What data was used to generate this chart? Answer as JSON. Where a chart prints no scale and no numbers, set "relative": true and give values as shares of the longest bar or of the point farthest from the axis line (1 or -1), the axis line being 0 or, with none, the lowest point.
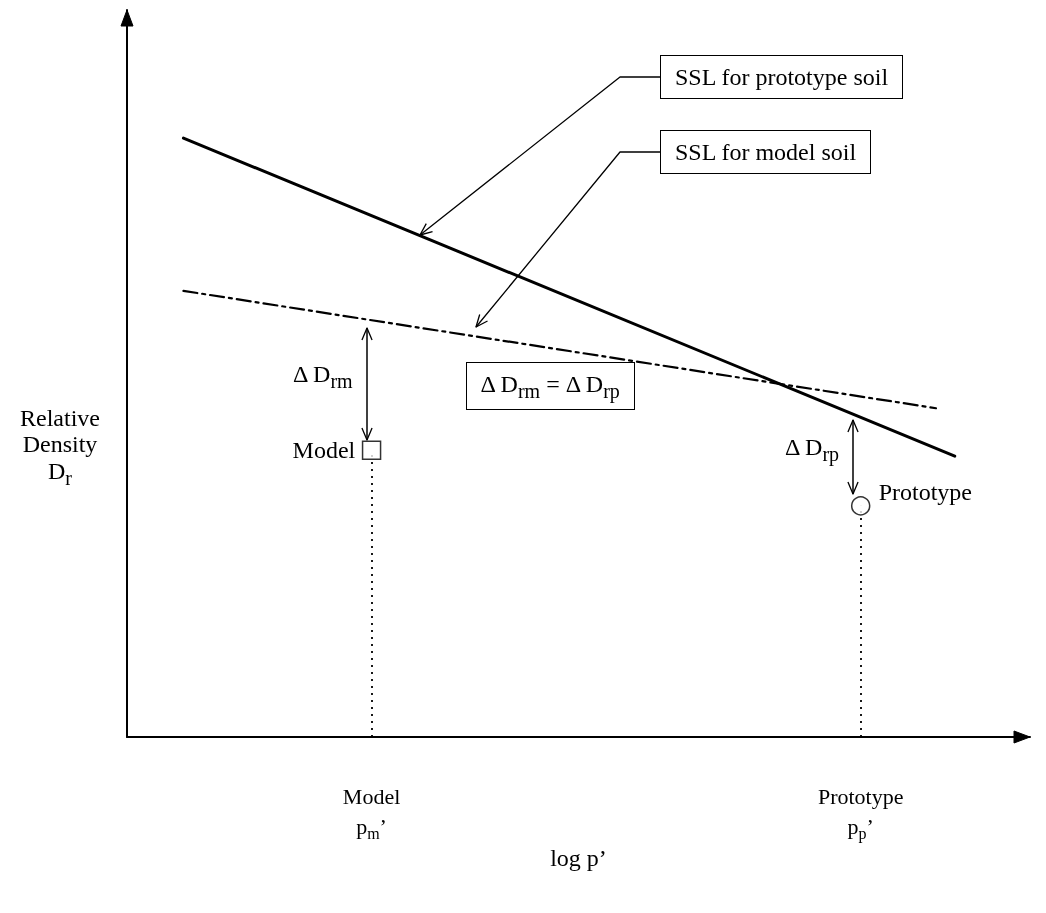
{
  "chart_data": {
    "type": "line",
    "relative": true,
    "xlabel": "log p’",
    "ylabel": "Relative Density D$_{r}$",
    "grid": false,
    "marker": "none",
    "categories": [
      null,
      null,
      null,
      null,
      null,
      null,
      null,
      null,
      null,
      null,
      null,
      null,
      null,
      "Model\np$_{m}$’",
      null,
      null,
      null,
      null,
      null,
      null,
      null,
      null,
      null,
      null,
      null,
      null,
      null,
      null,
      null,
      null,
      null,
      null,
      null,
      null,
      null,
      null,
      null,
      null,
      null,
      "Prototype\np$_{p}$’",
      null,
      null,
      null,
      null,
      null,
      null,
      null,
      null,
      null
    ],
    "series": [
      {
        "color": "#000000",
        "line_style": "solid",
        "values": [
          null,
          null,
          null,
          1,
          null,
          null,
          null,
          null,
          null,
          null,
          null,
          null,
          null,
          null,
          null,
          null,
          null,
          null,
          null,
          null,
          null,
          null,
          null,
          null,
          null,
          null,
          null,
          null,
          null,
          null,
          null,
          null,
          null,
          null,
          null,
          null,
          null,
          null,
          null,
          null,
          null,
          null,
          null,
          null,
          0.469,
          null,
          null,
          null,
          null
        ]
      },
      {
        "color": "#000000",
        "line_style": "dashed",
        "values": [
          null,
          null,
          null,
          0.745,
          null,
          null,
          null,
          null,
          null,
          null,
          null,
          null,
          null,
          null,
          null,
          null,
          null,
          null,
          null,
          null,
          null,
          null,
          null,
          null,
          null,
          null,
          null,
          null,
          null,
          null,
          null,
          null,
          null,
          null,
          null,
          null,
          null,
          null,
          null,
          null,
          null,
          null,
          null,
          0.549,
          null,
          null,
          null,
          null,
          null
        ]
      },
      {
        "type": "lollipop",
        "color": "#000000",
        "marker": "square",
        "line_style": "dotted",
        "values": [
          null,
          null,
          null,
          null,
          null,
          null,
          null,
          null,
          null,
          null,
          null,
          null,
          null,
          0.479,
          null,
          null,
          null,
          null,
          null,
          null,
          null,
          null,
          null,
          null,
          null,
          null,
          null,
          null,
          null,
          null,
          null,
          null,
          null,
          null,
          null,
          null,
          null,
          null,
          null,
          null,
          null,
          null,
          null,
          null,
          null,
          null,
          null,
          null,
          null
        ]
      },
      {
        "type": "lollipop",
        "color": "#000000",
        "marker": "circle",
        "line_style": "dotted",
        "values": [
          null,
          null,
          null,
          null,
          null,
          null,
          null,
          null,
          null,
          null,
          null,
          null,
          null,
          null,
          null,
          null,
          null,
          null,
          null,
          null,
          null,
          null,
          null,
          null,
          null,
          null,
          null,
          null,
          null,
          null,
          null,
          null,
          null,
          null,
          null,
          null,
          null,
          null,
          null,
          0.386,
          null,
          null,
          null,
          null,
          null,
          null,
          null,
          null,
          null
        ]
      }
    ],
    "annotations": [
      "SSL for prototype soil",
      "SSL for model soil",
      "Δ D$_{rm}$",
      "Δ D$_{rp}$",
      "Δ D$_{rm}$ = Δ D$_{rp}$",
      "Model",
      "Prototype"
    ]
  }
}
